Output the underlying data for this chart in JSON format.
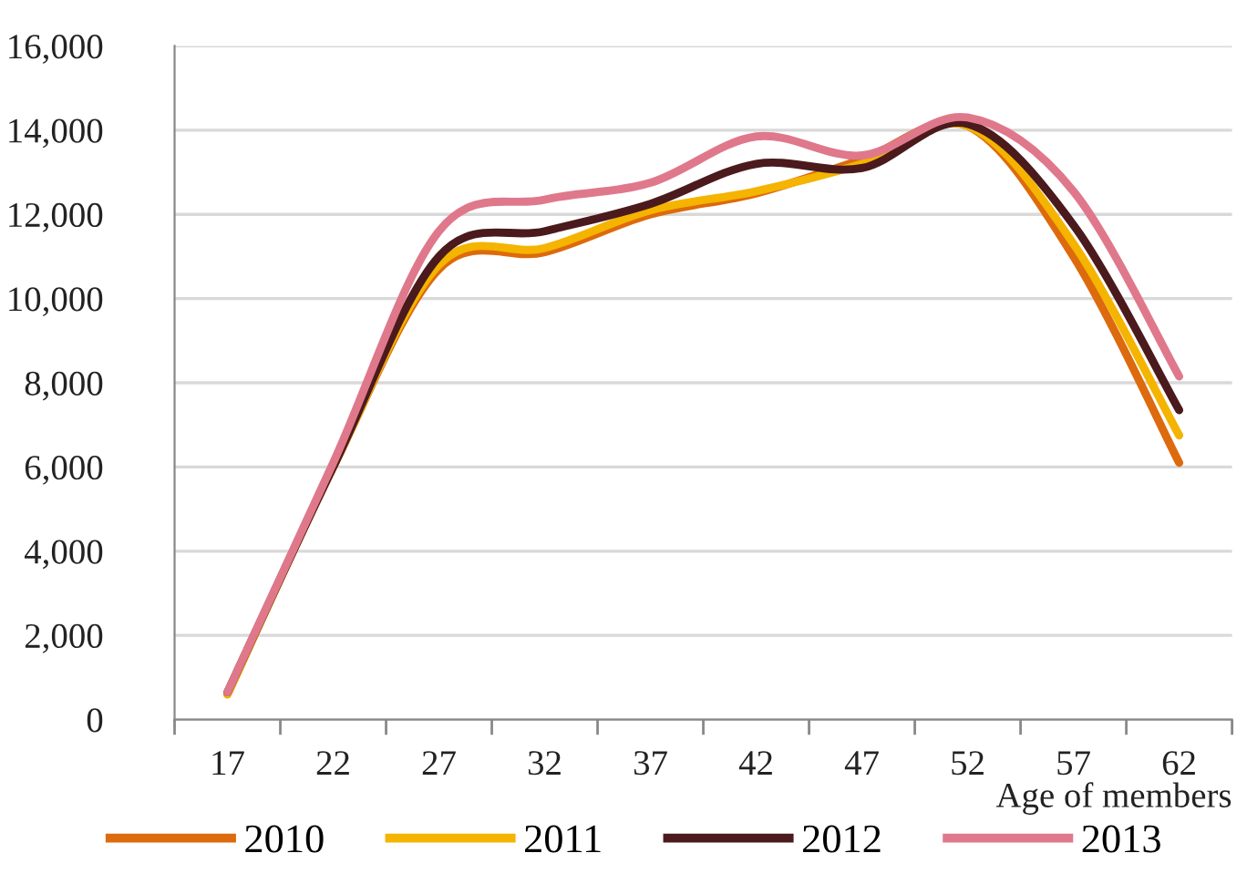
{
  "chart_data": {
    "type": "line",
    "xlabel": "Age of members",
    "categories": [
      "17",
      "22",
      "27",
      "32",
      "37",
      "42",
      "47",
      "52",
      "57",
      "62"
    ],
    "series": [
      {
        "name": "2010",
        "color": "#dd6a0c",
        "values": [
          600,
          6000,
          10700,
          11100,
          12000,
          12500,
          13300,
          14100,
          11000,
          6100
        ]
      },
      {
        "name": "2011",
        "color": "#f4b400",
        "values": [
          600,
          6000,
          10800,
          11200,
          12100,
          12550,
          13200,
          14100,
          11300,
          6750
        ]
      },
      {
        "name": "2012",
        "color": "#4b1a1c",
        "values": [
          650,
          6000,
          11000,
          11600,
          12250,
          13200,
          13100,
          14150,
          11750,
          7350
        ]
      },
      {
        "name": "2013",
        "color": "#e0788c",
        "values": [
          650,
          6100,
          11600,
          12350,
          12750,
          13850,
          13400,
          14300,
          12550,
          8150
        ]
      }
    ],
    "ylim": [
      0,
      16000
    ],
    "yticks": [
      0,
      {
        "value": 2000,
        "label": "2,000"
      },
      {
        "value": 4000,
        "label": "4,000"
      },
      {
        "value": 6000,
        "label": "6,000"
      },
      {
        "value": 8000,
        "label": "8,000"
      },
      {
        "value": 10000,
        "label": "10,000"
      },
      {
        "value": 12000,
        "label": "12,000"
      },
      {
        "value": 14000,
        "label": "14,000"
      },
      {
        "value": 16000,
        "label": "16,000"
      }
    ],
    "grid": "y",
    "legend": "bottom",
    "marker": "none",
    "line_style": "solid"
  }
}
